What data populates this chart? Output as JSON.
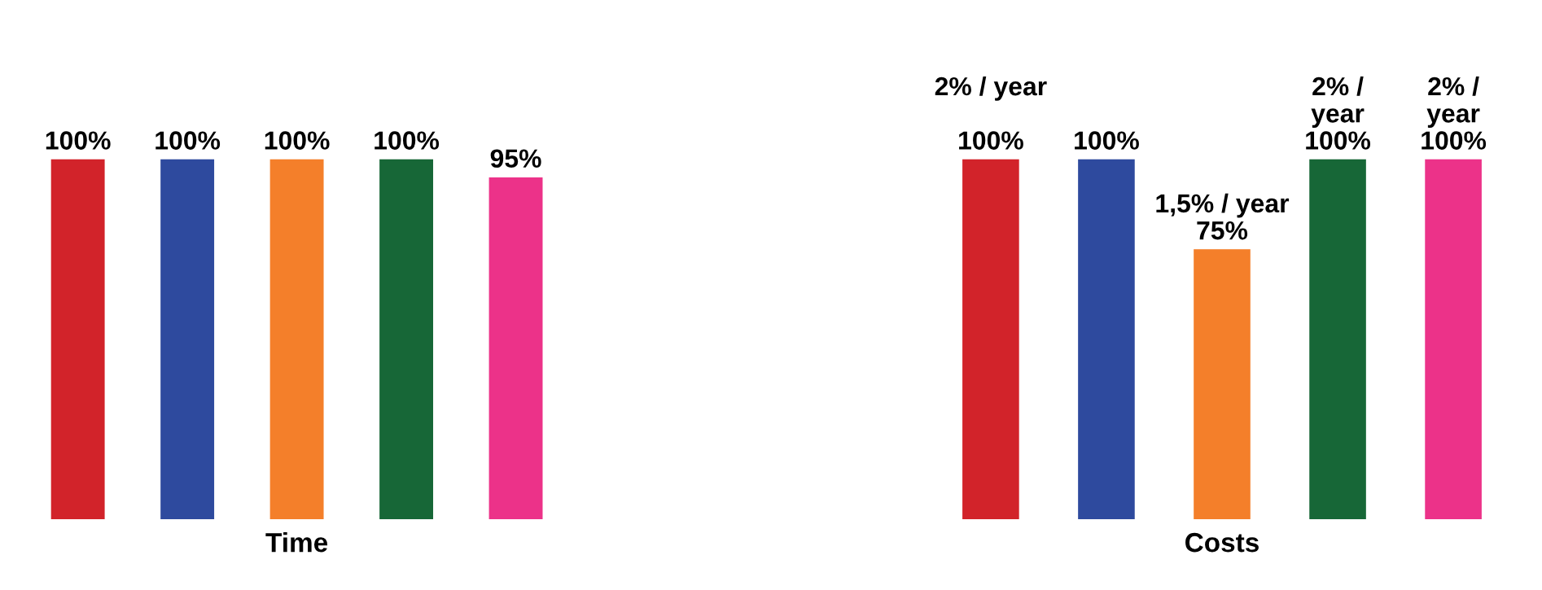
{
  "chart_data": [
    {
      "type": "bar",
      "xlabel": "Time",
      "categories": [
        null,
        null,
        null,
        null,
        null
      ],
      "values": [
        100,
        100,
        100,
        100,
        95
      ],
      "colors": [
        "#d2232a",
        "#2e4a9e",
        "#f47f2a",
        "#176737",
        "#ec3289"
      ],
      "value_labels": [
        "100%",
        "100%",
        "100%",
        "100%",
        "95%"
      ],
      "grid": false,
      "legend": false
    },
    {
      "type": "bar",
      "xlabel": "Costs",
      "categories": [
        null,
        null,
        null,
        null,
        null
      ],
      "values": [
        100,
        100,
        75,
        100,
        100
      ],
      "colors": [
        "#d2232a",
        "#2e4a9e",
        "#f47f2a",
        "#176737",
        "#ec3289"
      ],
      "value_labels": [
        "2% / year\n\n100%",
        "100%",
        "1,5% / year\n75%",
        "2% /\nyear\n100%",
        "2% /\nyear\n100%"
      ],
      "grid": false,
      "legend": false
    }
  ]
}
